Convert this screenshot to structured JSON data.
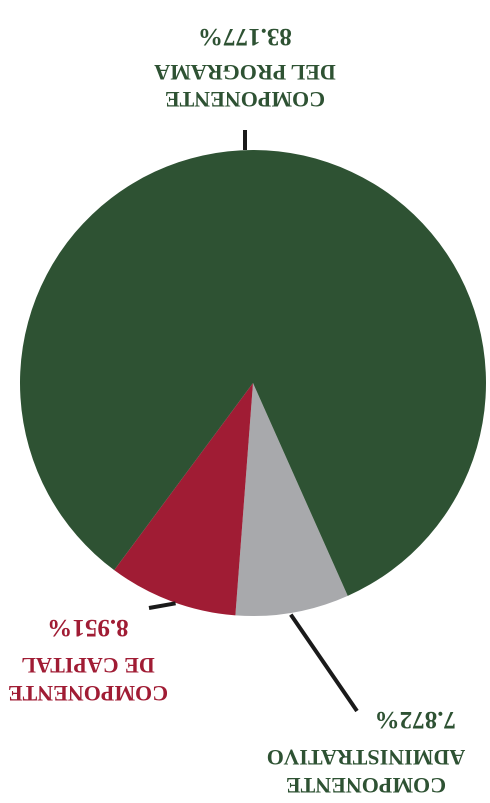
{
  "chart_data": {
    "type": "pie",
    "slices": [
      {
        "label_lines": [
          "COMPONENTE",
          "DEL PROGRAMA"
        ],
        "value": 83.177,
        "value_label": "83.177%",
        "color": "#2e5233"
      },
      {
        "label_lines": [
          "COMPONENTE",
          "DE CAPITAL"
        ],
        "value": 8.951,
        "value_label": "8.951%",
        "color": "#a01c34"
      },
      {
        "label_lines": [
          "COMPONENTE",
          "ADMINISTRATIVO"
        ],
        "value": 7.872,
        "value_label": "7.872%",
        "color": "#a8a9ac"
      }
    ],
    "orientation": "rotated 180 degrees",
    "label_colors": {
      "programa": "#2e5233",
      "capital": "#a01c34",
      "administrativo": "#2e5233"
    }
  }
}
